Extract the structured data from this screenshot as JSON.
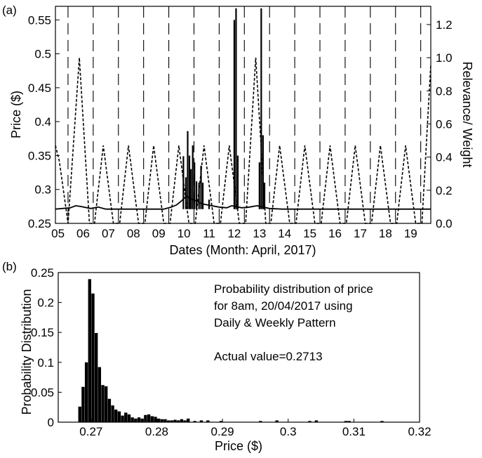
{
  "chart_data": [
    {
      "panel": "(a)",
      "type": "line",
      "xlabel": "Dates (Month: April, 2017)",
      "ylabel_left": "Price ($)",
      "ylabel_right": "Relevance/ Weight",
      "ylim_left": [
        0.25,
        0.57
      ],
      "ylim_right": [
        0.0,
        1.31
      ],
      "xlim": [
        5.0,
        19.9
      ],
      "x_ticks": [
        5,
        6,
        7,
        8,
        9,
        10,
        11,
        12,
        13,
        14,
        15,
        16,
        17,
        18,
        19
      ],
      "x_tick_labels": [
        "05",
        "06",
        "07",
        "08",
        "09",
        "10",
        "11",
        "12",
        "13",
        "14",
        "15",
        "16",
        "17",
        "18",
        "19"
      ],
      "y_ticks_left": [
        0.25,
        0.3,
        0.35,
        0.4,
        0.45,
        0.5,
        0.55
      ],
      "y_tick_labels_left": [
        "0.25",
        "0.3",
        "0.35",
        "0.4",
        "0.45",
        "0.5",
        "0.55"
      ],
      "y_ticks_right": [
        0.0,
        0.2,
        0.4,
        0.6,
        0.8,
        1.0,
        1.2
      ],
      "y_tick_labels_right": [
        "0.0",
        "0.2",
        "0.4",
        "0.6",
        "0.8",
        "1.0",
        "1.2"
      ],
      "day_boundaries": [
        5.5,
        6.5,
        7.5,
        8.5,
        9.5,
        10.5,
        11.5,
        12.5,
        13.5,
        14.5,
        15.5,
        16.5,
        17.5,
        18.5,
        19.5
      ],
      "series": [
        {
          "style": "solid",
          "axis": "left",
          "baseline": 0.271,
          "segments": [
            {
              "x": [
                5.0,
                5.6,
                5.8,
                6.0,
                6.4,
                6.7,
                7.0,
                9.3,
                9.6,
                9.8,
                10.0,
                10.2,
                10.4,
                10.6,
                10.8,
                11.2,
                11.5,
                11.8,
                12.0,
                12.4,
                12.7,
                13.0,
                13.5,
                14.0,
                19.9
              ],
              "y": [
                0.271,
                0.273,
                0.276,
                0.275,
                0.272,
                0.274,
                0.271,
                0.271,
                0.274,
                0.277,
                0.283,
                0.29,
                0.286,
                0.283,
                0.279,
                0.276,
                0.274,
                0.273,
                0.276,
                0.273,
                0.274,
                0.276,
                0.272,
                0.271,
                0.271
              ]
            }
          ],
          "spikes": [
            {
              "x": 10.08,
              "y": 0.349
            },
            {
              "x": 10.18,
              "y": 0.318
            },
            {
              "x": 10.25,
              "y": 0.386
            },
            {
              "x": 10.32,
              "y": 0.35
            },
            {
              "x": 10.38,
              "y": 0.33
            },
            {
              "x": 10.45,
              "y": 0.365
            },
            {
              "x": 10.52,
              "y": 0.34
            },
            {
              "x": 10.6,
              "y": 0.312
            },
            {
              "x": 10.7,
              "y": 0.31
            },
            {
              "x": 10.78,
              "y": 0.335
            },
            {
              "x": 10.85,
              "y": 0.31
            },
            {
              "x": 11.1,
              "y": 0.285
            },
            {
              "x": 12.1,
              "y": 0.55
            },
            {
              "x": 12.17,
              "y": 0.567
            },
            {
              "x": 12.24,
              "y": 0.35
            },
            {
              "x": 13.1,
              "y": 0.34
            },
            {
              "x": 13.17,
              "y": 0.567
            },
            {
              "x": 13.24,
              "y": 0.38
            },
            {
              "x": 13.3,
              "y": 0.31
            }
          ]
        },
        {
          "style": "dashed",
          "axis": "right",
          "x": [
            5.0,
            5.15,
            5.5,
            5.95,
            6.35,
            6.55,
            6.9,
            7.3,
            7.55,
            7.9,
            8.3,
            8.55,
            8.9,
            9.3,
            9.55,
            9.9,
            10.3,
            10.55,
            10.9,
            11.3,
            11.55,
            11.9,
            12.3,
            12.55,
            12.95,
            13.35,
            13.55,
            13.9,
            14.3,
            14.55,
            14.9,
            15.3,
            15.55,
            15.9,
            16.3,
            16.55,
            16.9,
            17.3,
            17.55,
            17.9,
            18.3,
            18.55,
            18.9,
            19.3,
            19.55,
            19.9
          ],
          "y": [
            0.47,
            0.38,
            0.0,
            1.0,
            0.0,
            0.0,
            0.47,
            0.0,
            0.0,
            0.47,
            0.0,
            0.0,
            0.47,
            0.0,
            0.0,
            0.47,
            0.0,
            0.0,
            0.47,
            0.0,
            0.0,
            0.47,
            0.0,
            0.0,
            1.0,
            0.0,
            0.0,
            0.47,
            0.0,
            0.0,
            0.47,
            0.0,
            0.0,
            0.47,
            0.0,
            0.0,
            0.47,
            0.0,
            0.0,
            0.47,
            0.0,
            0.0,
            0.47,
            0.0,
            0.0,
            0.96
          ]
        }
      ]
    },
    {
      "panel": "(b)",
      "type": "bar",
      "xlabel": "Price ($)",
      "ylabel": "Probability Distribution",
      "xlim": [
        0.265,
        0.32
      ],
      "ylim": [
        0.0,
        0.25
      ],
      "x_ticks": [
        0.27,
        0.28,
        0.29,
        0.3,
        0.31,
        0.32
      ],
      "x_tick_labels": [
        "0.27",
        "0.28",
        "0.29",
        "0.3",
        "0.31",
        "0.32"
      ],
      "y_ticks": [
        0.0,
        0.05,
        0.1,
        0.15,
        0.2,
        0.25
      ],
      "y_tick_labels": [
        "0",
        "0.05",
        "0.1",
        "0.15",
        "0.2",
        "0.25"
      ],
      "bin_width": 0.0005,
      "bins": [
        0.2683,
        0.2688,
        0.2693,
        0.2698,
        0.2703,
        0.2708,
        0.2713,
        0.2718,
        0.2723,
        0.2728,
        0.2733,
        0.2738,
        0.2743,
        0.2748,
        0.2753,
        0.2758,
        0.2763,
        0.2768,
        0.2773,
        0.2778,
        0.2783,
        0.2788,
        0.2793,
        0.2798,
        0.2803,
        0.2808,
        0.2813,
        0.2818,
        0.2823,
        0.2828,
        0.2833,
        0.2838,
        0.2843,
        0.2848,
        0.2858,
        0.2868,
        0.2878,
        0.2898,
        0.2958,
        0.2983,
        0.3033,
        0.3043,
        0.3088,
        0.3093,
        0.3143
      ],
      "values": [
        0.026,
        0.059,
        0.1,
        0.239,
        0.215,
        0.149,
        0.092,
        0.062,
        0.06,
        0.039,
        0.028,
        0.021,
        0.018,
        0.011,
        0.016,
        0.013,
        0.008,
        0.006,
        0.008,
        0.006,
        0.012,
        0.013,
        0.01,
        0.009,
        0.006,
        0.005,
        0.005,
        0.003,
        0.003,
        0.004,
        0.003,
        0.005,
        0.003,
        0.006,
        0.002,
        0.003,
        0.003,
        0.002,
        0.002,
        0.003,
        0.002,
        0.003,
        0.002,
        0.002,
        0.002
      ],
      "annotation": {
        "lines": [
          "Probability distribution of price",
          "for 8am, 20/04/2017 using",
          "Daily & Weekly Pattern",
          "",
          "Actual value=0.2713"
        ]
      }
    }
  ]
}
